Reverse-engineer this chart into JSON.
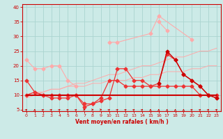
{
  "x": [
    0,
    1,
    2,
    3,
    4,
    5,
    6,
    7,
    8,
    9,
    10,
    11,
    12,
    13,
    14,
    15,
    16,
    17,
    18,
    19,
    20,
    21,
    22,
    23
  ],
  "line_light1": [
    22,
    19,
    19,
    20,
    20,
    15,
    13,
    null,
    null,
    null,
    null,
    null,
    null,
    null,
    null,
    null,
    null,
    null,
    null,
    null,
    null,
    null,
    null,
    null
  ],
  "line_light2": [
    null,
    null,
    null,
    null,
    null,
    null,
    null,
    null,
    null,
    null,
    28,
    28,
    null,
    null,
    null,
    31,
    37,
    null,
    null,
    null,
    29,
    null,
    null,
    null
  ],
  "line_light3": [
    null,
    null,
    null,
    null,
    null,
    null,
    null,
    null,
    null,
    null,
    null,
    null,
    null,
    null,
    null,
    null,
    35,
    32,
    null,
    null,
    null,
    null,
    null,
    null
  ],
  "line_trend1": [
    9,
    10,
    11,
    12,
    12,
    13,
    14,
    14,
    15,
    16,
    17,
    17,
    18,
    19,
    20,
    20,
    21,
    22,
    23,
    23,
    24,
    25,
    25,
    26
  ],
  "line_trend2": [
    10,
    11,
    11,
    12,
    12,
    13,
    13,
    13,
    14,
    14,
    15,
    15,
    15,
    16,
    16,
    17,
    17,
    18,
    18,
    18,
    19,
    19,
    20,
    20
  ],
  "line_mid1": [
    15,
    11,
    10,
    10,
    10,
    10,
    10,
    7,
    7,
    8,
    9,
    19,
    19,
    15,
    15,
    13,
    14,
    24,
    22,
    17,
    15,
    13,
    10,
    10
  ],
  "line_mid2": [
    10,
    11,
    10,
    9,
    9,
    9,
    10,
    6,
    7,
    9,
    15,
    15,
    13,
    13,
    13,
    13,
    13,
    13,
    13,
    13,
    13,
    10,
    10,
    9
  ],
  "line_const": [
    10,
    10,
    10,
    10,
    10,
    10,
    10,
    10,
    10,
    10,
    10,
    10,
    10,
    10,
    10,
    10,
    10,
    10,
    10,
    10,
    10,
    10,
    10,
    10
  ],
  "line_dark1": [
    null,
    null,
    null,
    null,
    null,
    null,
    null,
    null,
    null,
    null,
    null,
    null,
    null,
    null,
    null,
    null,
    14,
    25,
    22,
    17,
    15,
    13,
    10,
    9
  ],
  "bg_color": "#cceae7",
  "grid_color": "#aad4d0",
  "line_color_dark": "#cc0000",
  "line_color_mid": "#ee3333",
  "line_color_light": "#ffaaaa",
  "line_color_vlight": "#ffcccc",
  "ylabel_ticks": [
    5,
    10,
    15,
    20,
    25,
    30,
    35,
    40
  ],
  "xlabel": "Vent moyen/en rafales ( km/h )",
  "ylim": [
    4.5,
    41
  ],
  "xlim": [
    -0.5,
    23.5
  ],
  "arrow_angles": [
    45,
    0,
    45,
    45,
    45,
    45,
    45,
    90,
    90,
    90,
    45,
    45,
    45,
    45,
    45,
    0,
    0,
    0,
    0,
    0,
    45,
    45,
    45,
    45
  ]
}
